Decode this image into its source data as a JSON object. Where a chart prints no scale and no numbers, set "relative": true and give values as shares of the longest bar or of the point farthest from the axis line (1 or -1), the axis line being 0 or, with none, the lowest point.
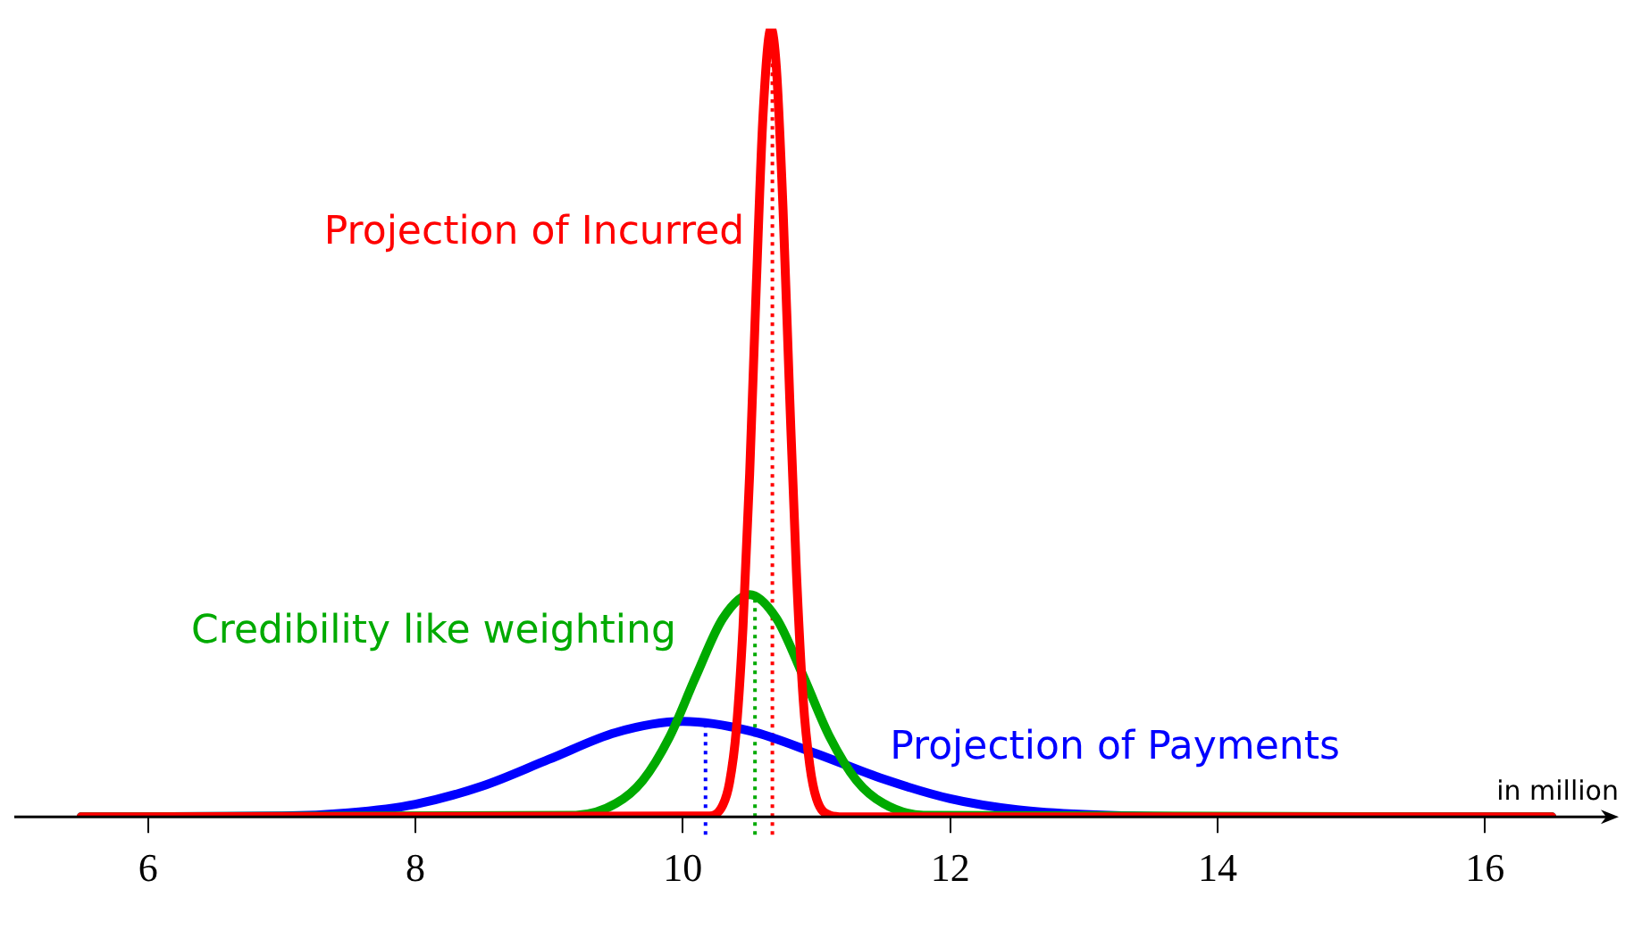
{
  "chart_data": {
    "type": "line",
    "relative": true,
    "xlabel": "in million",
    "xlim": [
      5,
      17
    ],
    "xticks": [
      6,
      8,
      10,
      12,
      14,
      16
    ],
    "grid": false,
    "legend": false,
    "marker": "none",
    "line_style": "solid",
    "series": [
      {
        "name": "Projection of Incurred",
        "color": "#ff0000",
        "x": [
          5.5,
          10.2,
          10.3,
          10.35,
          10.4,
          10.45,
          10.5,
          10.55,
          10.6,
          10.66,
          10.7,
          10.75,
          10.8,
          10.85,
          10.9,
          10.95,
          11.0,
          11.1,
          11.2,
          16.5
        ],
        "values": [
          0,
          0.001,
          0.015,
          0.044,
          0.11,
          0.24,
          0.435,
          0.675,
          0.89,
          1,
          0.95,
          0.77,
          0.53,
          0.31,
          0.15,
          0.065,
          0.023,
          0.002,
          0,
          0
        ]
      },
      {
        "name": "Credibility like weighting",
        "color": "#00aa00",
        "x": [
          5.5,
          9.2,
          9.5,
          9.7,
          9.9,
          10.1,
          10.3,
          10.5,
          10.7,
          10.9,
          11.1,
          11.3,
          11.5,
          11.8,
          16.5
        ],
        "values": [
          0,
          0.002,
          0.017,
          0.046,
          0.101,
          0.179,
          0.252,
          0.282,
          0.252,
          0.179,
          0.101,
          0.046,
          0.017,
          0.002,
          0
        ]
      },
      {
        "name": "Projection of Payments",
        "color": "#0000ff",
        "x": [
          5.5,
          7,
          7.5,
          8,
          8.5,
          9,
          9.5,
          10,
          10.5,
          11,
          11.5,
          12,
          12.5,
          13,
          14,
          16.5
        ],
        "values": [
          0,
          0.001,
          0.005,
          0.016,
          0.039,
          0.073,
          0.107,
          0.121,
          0.109,
          0.08,
          0.048,
          0.023,
          0.009,
          0.003,
          0,
          0
        ]
      }
    ],
    "ref_lines": [
      {
        "axis": "x",
        "value": 10.67,
        "color": "#ff0000",
        "line_style": "dotted"
      },
      {
        "axis": "x",
        "value": 10.54,
        "color": "#00aa00",
        "line_style": "dotted"
      },
      {
        "axis": "x",
        "value": 10.17,
        "color": "#0000ff",
        "line_style": "dotted"
      }
    ]
  }
}
